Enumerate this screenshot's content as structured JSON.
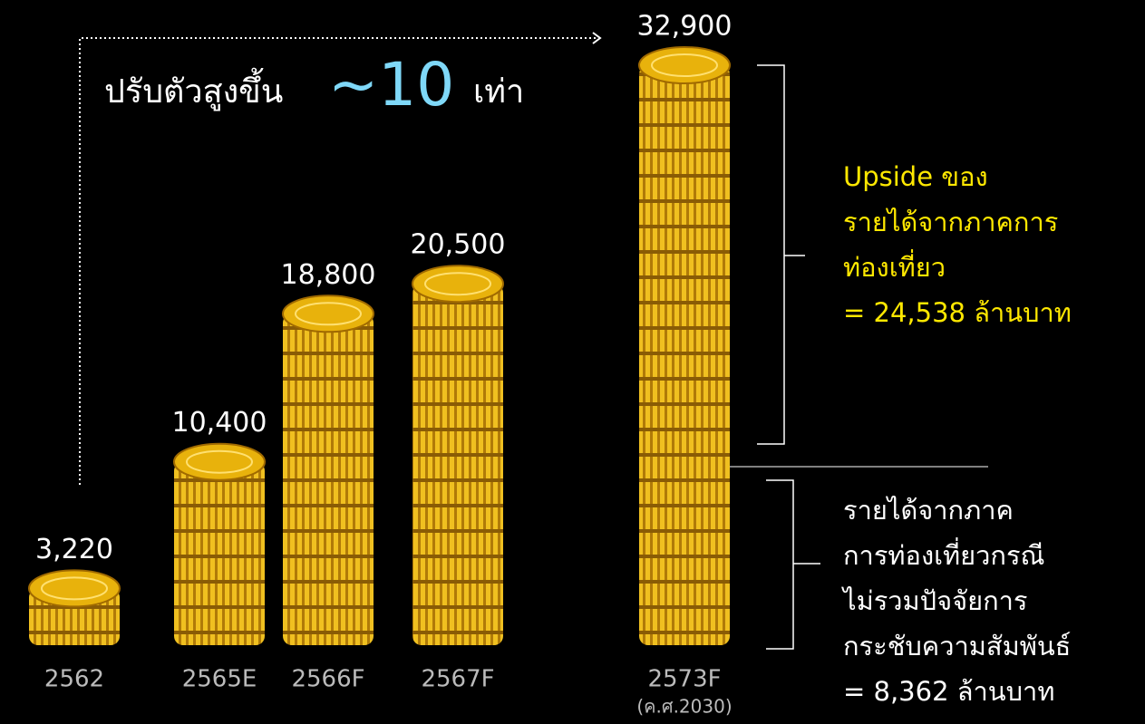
{
  "chart_data": {
    "type": "bar",
    "categories": [
      "2562",
      "2565E",
      "2566F",
      "2567F",
      "2573F"
    ],
    "category_note": "(ค.ศ.2030)",
    "values": [
      3220,
      10400,
      18800,
      20500,
      32900
    ],
    "value_labels": [
      "3,220",
      "10,400",
      "18,800",
      "20,500",
      "32,900"
    ],
    "color": "#e8b20c",
    "growth": {
      "prefix": "ปรับตัวสูงขึ้น",
      "multiple": "~10",
      "suffix": "เท่า"
    },
    "upside": [
      "Upside ของ",
      "รายได้จากภาคการ",
      "ท่องเที่ยว",
      "= 24,538 ล้านบาท"
    ],
    "base": [
      "รายได้จากภาค",
      "การท่องเที่ยวกรณี",
      "ไม่รวมปัจจัยการ",
      "กระชับความสัมพันธ์",
      "= 8,362 ล้านบาท"
    ]
  }
}
